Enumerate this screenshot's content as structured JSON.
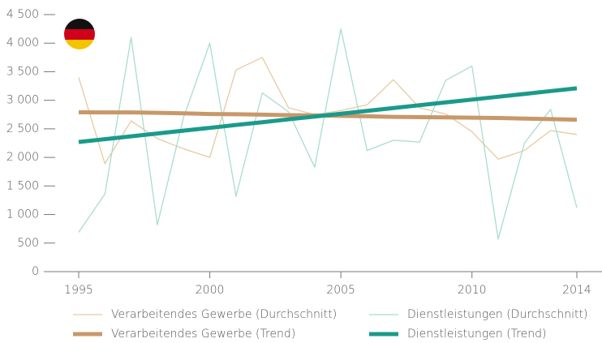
{
  "chart_data": {
    "type": "line",
    "x": [
      1995,
      1996,
      1997,
      1998,
      1999,
      2000,
      2001,
      2002,
      2003,
      2004,
      2005,
      2006,
      2007,
      2008,
      2009,
      2010,
      2011,
      2012,
      2013,
      2014
    ],
    "series": [
      {
        "name": "Verarbeitendes Gewerbe (Durchschnitt)",
        "color": "#e8c9a0",
        "width": 1.3,
        "values": [
          3400,
          1890,
          2640,
          2330,
          2150,
          2000,
          3530,
          3750,
          2870,
          2750,
          2820,
          2920,
          3360,
          2870,
          2760,
          2450,
          1970,
          2120,
          2470,
          2400
        ]
      },
      {
        "name": "Dienstleistungen (Durchschnitt)",
        "color": "#a8ddd0",
        "width": 1.3,
        "values": [
          690,
          1360,
          4100,
          820,
          2700,
          4000,
          1320,
          3130,
          2800,
          1830,
          4250,
          2120,
          2300,
          2270,
          3350,
          3600,
          570,
          2250,
          2840,
          1120
        ]
      },
      {
        "name": "Verarbeitendes Gewerbe (Trend)",
        "color": "#c8986a",
        "width": 5,
        "values": [
          2790,
          2788,
          2787,
          2780,
          2772,
          2760,
          2755,
          2748,
          2740,
          2735,
          2728,
          2720,
          2710,
          2705,
          2700,
          2695,
          2690,
          2680,
          2670,
          2660
        ]
      },
      {
        "name": "Dienstleistungen (Trend)",
        "color": "#1a9a8a",
        "width": 5,
        "values": [
          2270,
          2319,
          2369,
          2418,
          2468,
          2517,
          2567,
          2616,
          2666,
          2715,
          2765,
          2814,
          2864,
          2913,
          2963,
          3012,
          3062,
          3111,
          3161,
          3210
        ]
      }
    ],
    "xlim": [
      1995,
      2014
    ],
    "xticks": [
      1995,
      2000,
      2005,
      2010,
      2014
    ],
    "ylim": [
      0,
      4500
    ],
    "yticks": [
      0,
      500,
      {
        "value": 1000,
        "label": "1 000"
      },
      {
        "value": 1500,
        "label": "1 500"
      },
      {
        "value": 2000,
        "label": "2 000"
      },
      {
        "value": 2500,
        "label": "2 500"
      },
      {
        "value": 3000,
        "label": "3 000"
      },
      {
        "value": 3500,
        "label": "3 500"
      },
      {
        "value": 4000,
        "label": "4 000"
      },
      {
        "value": 4500,
        "label": "4 500"
      }
    ],
    "grid": false
  }
}
